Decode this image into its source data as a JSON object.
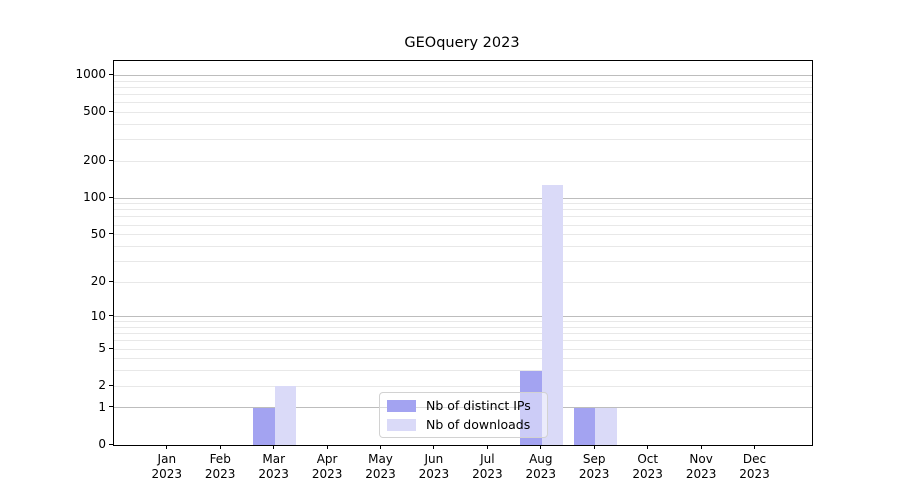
{
  "chart_data": {
    "type": "bar",
    "title": "GEOquery 2023",
    "categories": [
      "Jan",
      "Feb",
      "Mar",
      "Apr",
      "May",
      "Jun",
      "Jul",
      "Aug",
      "Sep",
      "Oct",
      "Nov",
      "Dec"
    ],
    "category_year": "2023",
    "series": [
      {
        "name": "Nb of distinct IPs",
        "key": "distinct-ips",
        "color": "#a3a3f1",
        "values": [
          0,
          0,
          1,
          0,
          0,
          0,
          0,
          3,
          1,
          0,
          0,
          0
        ]
      },
      {
        "name": "Nb of downloads",
        "key": "downloads",
        "color": "#dadaf8",
        "values": [
          0,
          0,
          2,
          0,
          0,
          0,
          0,
          127,
          1,
          0,
          0,
          0
        ]
      }
    ],
    "y_scale": "log1p",
    "ylim": [
      0,
      1300
    ],
    "y_ticks": [
      0,
      1,
      2,
      5,
      10,
      20,
      50,
      100,
      200,
      500,
      1000
    ],
    "major_grid_values": [
      1,
      10,
      100,
      1000
    ],
    "minor_grid_values": [
      2,
      3,
      4,
      5,
      6,
      7,
      8,
      9,
      20,
      30,
      40,
      50,
      60,
      70,
      80,
      90,
      200,
      300,
      400,
      500,
      600,
      700,
      800,
      900
    ],
    "grid": true,
    "legend": {
      "position": "lower center",
      "labels": [
        "Nb of distinct IPs",
        "Nb of downloads"
      ]
    }
  },
  "colors": {
    "axis": "#000000",
    "major_grid": "#bdbdbd",
    "minor_grid": "#e8e8e8",
    "legend_border": "#d2d2d2"
  }
}
